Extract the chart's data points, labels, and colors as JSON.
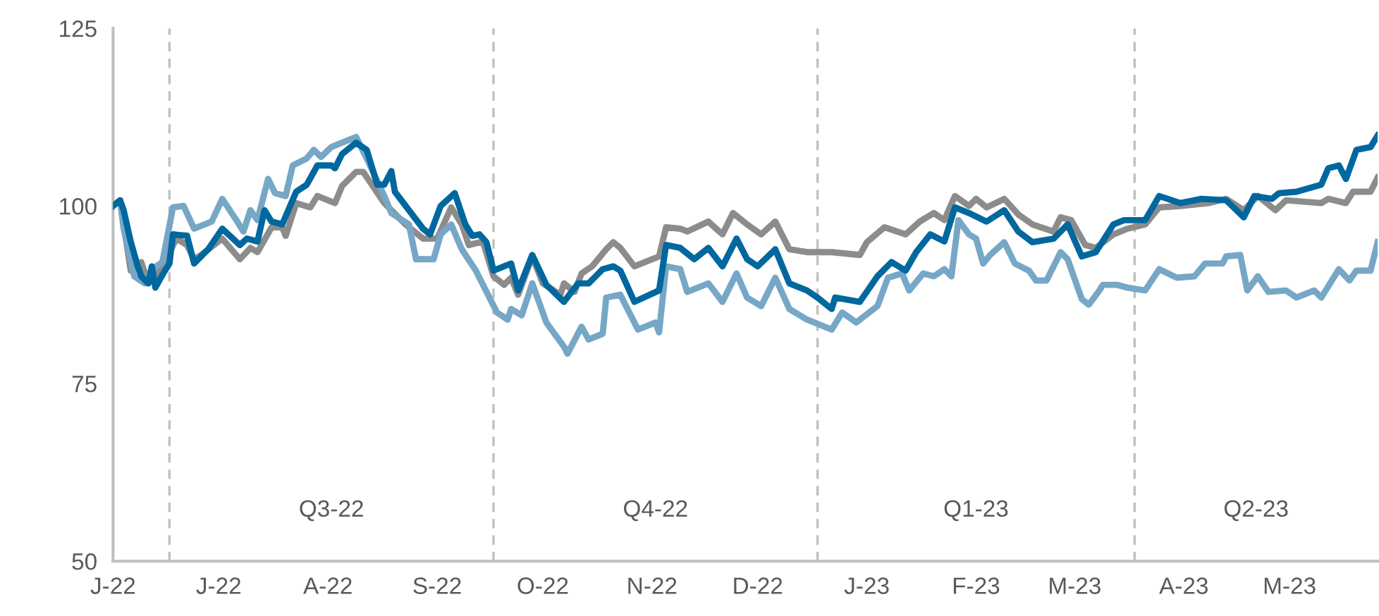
{
  "chart_data": {
    "type": "line",
    "xlim": [
      "2022-06-15",
      "2023-06-09"
    ],
    "ylim": [
      50,
      125
    ],
    "yticks": [
      50,
      75,
      100,
      125
    ],
    "xticks": [
      {
        "value": "2022-06-15",
        "label": "J-22"
      },
      {
        "value": "2022-07-15",
        "label": "J-22"
      },
      {
        "value": "2022-08-15",
        "label": "A-22"
      },
      {
        "value": "2022-09-15",
        "label": "S-22"
      },
      {
        "value": "2022-10-15",
        "label": "O-22"
      },
      {
        "value": "2022-11-15",
        "label": "N-22"
      },
      {
        "value": "2022-12-15",
        "label": "D-22"
      },
      {
        "value": "2023-01-15",
        "label": "J-23"
      },
      {
        "value": "2023-02-15",
        "label": "F-23"
      },
      {
        "value": "2023-03-15",
        "label": "M-23"
      },
      {
        "value": "2023-04-15",
        "label": "A-23"
      },
      {
        "value": "2023-05-15",
        "label": "M-23"
      }
    ],
    "grid": false,
    "marker": "none",
    "line_style": "solid",
    "ref_lines": [
      {
        "axis": "x",
        "value": "2022-07-01",
        "color": "#bfbfbf",
        "line_style": "dashed"
      },
      {
        "axis": "x",
        "value": "2022-10-01",
        "color": "#bfbfbf",
        "line_style": "dashed"
      },
      {
        "axis": "x",
        "value": "2023-01-01",
        "color": "#bfbfbf",
        "line_style": "dashed"
      },
      {
        "axis": "x",
        "value": "2023-04-01",
        "color": "#bfbfbf",
        "line_style": "dashed"
      }
    ],
    "annotations": [
      "Q3-22",
      "Q4-22",
      "Q1-23",
      "Q2-23"
    ],
    "series": [
      {
        "color": "#8c8c8c",
        "x": [
          "2022-06-15",
          "2022-06-17",
          "2022-06-18",
          "2022-06-20",
          "2022-06-23",
          "2022-06-25",
          "2022-06-29",
          "2022-07-03",
          "2022-07-06",
          "2022-07-08",
          "2022-07-10",
          "2022-07-16",
          "2022-07-21",
          "2022-07-24",
          "2022-07-26",
          "2022-07-30",
          "2022-08-02",
          "2022-08-03",
          "2022-08-06",
          "2022-08-10",
          "2022-08-12",
          "2022-08-17",
          "2022-08-19",
          "2022-08-23",
          "2022-08-25",
          "2022-08-31",
          "2022-09-06",
          "2022-09-11",
          "2022-09-15",
          "2022-09-19",
          "2022-09-22",
          "2022-09-24",
          "2022-09-28",
          "2022-10-01",
          "2022-10-04",
          "2022-10-06",
          "2022-10-08",
          "2022-10-12",
          "2022-10-15",
          "2022-10-20",
          "2022-10-21",
          "2022-10-24",
          "2022-10-26",
          "2022-10-29",
          "2022-11-02",
          "2022-11-04",
          "2022-11-06",
          "2022-11-10",
          "2022-11-17",
          "2022-11-19",
          "2022-11-23",
          "2022-11-25",
          "2022-12-01",
          "2022-12-05",
          "2022-12-08",
          "2022-12-12",
          "2022-12-16",
          "2022-12-20",
          "2022-12-24",
          "2022-12-29",
          "2023-01-05",
          "2023-01-13",
          "2023-01-15",
          "2023-01-20",
          "2023-01-26",
          "2023-01-30",
          "2023-02-03",
          "2023-02-06",
          "2023-02-09",
          "2023-02-13",
          "2023-02-15",
          "2023-02-18",
          "2023-02-23",
          "2023-02-27",
          "2023-03-03",
          "2023-03-09",
          "2023-03-11",
          "2023-03-14",
          "2023-03-18",
          "2023-03-21",
          "2023-03-26",
          "2023-03-30",
          "2023-04-04",
          "2023-04-08",
          "2023-04-14",
          "2023-04-22",
          "2023-04-27",
          "2023-05-02",
          "2023-05-06",
          "2023-05-11",
          "2023-05-14",
          "2023-05-24",
          "2023-05-26",
          "2023-05-31",
          "2023-06-02",
          "2023-06-07",
          "2023-06-09"
        ],
        "values": [
          100,
          100.8,
          97.4,
          90.9,
          92.1,
          89.1,
          91.5,
          95.4,
          94.5,
          92.5,
          93.1,
          95.4,
          92.5,
          94.1,
          93.5,
          97.0,
          97.0,
          95.8,
          100.4,
          99.8,
          101.4,
          100.4,
          102.8,
          104.8,
          104.8,
          100.4,
          97.4,
          95.4,
          95.4,
          99.8,
          97.4,
          94.5,
          95.0,
          90.1,
          88.9,
          89.9,
          87.5,
          92.9,
          89.1,
          87.5,
          89.1,
          87.9,
          90.5,
          91.5,
          93.9,
          94.9,
          94.1,
          91.5,
          92.9,
          97.0,
          96.8,
          96.4,
          97.8,
          96.0,
          99.0,
          97.4,
          96.0,
          97.8,
          93.9,
          93.5,
          93.5,
          93.1,
          94.9,
          97.0,
          96.0,
          97.8,
          99.0,
          98.0,
          101.4,
          100,
          101.0,
          99.8,
          101.0,
          98.8,
          97.4,
          96.4,
          98.4,
          98.0,
          94.5,
          94.1,
          96.0,
          96.8,
          97.4,
          99.8,
          100,
          100.4,
          101.0,
          99.4,
          101.4,
          99.4,
          100.8,
          100.4,
          101.0,
          100.4,
          102.0,
          102.0,
          104.0
        ]
      },
      {
        "color": "#76a7c6",
        "x": [
          "2022-06-15",
          "2022-06-17",
          "2022-06-18",
          "2022-06-21",
          "2022-06-24",
          "2022-06-26",
          "2022-06-29",
          "2022-07-02",
          "2022-07-05",
          "2022-07-08",
          "2022-07-13",
          "2022-07-16",
          "2022-07-20",
          "2022-07-22",
          "2022-07-24",
          "2022-07-26",
          "2022-07-29",
          "2022-07-31",
          "2022-08-03",
          "2022-08-05",
          "2022-08-09",
          "2022-08-11",
          "2022-08-13",
          "2022-08-16",
          "2022-08-19",
          "2022-08-23",
          "2022-08-26",
          "2022-08-31",
          "2022-09-02",
          "2022-09-07",
          "2022-09-09",
          "2022-09-14",
          "2022-09-16",
          "2022-09-19",
          "2022-09-22",
          "2022-09-26",
          "2022-09-28",
          "2022-10-02",
          "2022-10-05",
          "2022-10-06",
          "2022-10-09",
          "2022-10-12",
          "2022-10-16",
          "2022-10-21",
          "2022-10-22",
          "2022-10-26",
          "2022-10-28",
          "2022-11-01",
          "2022-11-02",
          "2022-11-06",
          "2022-11-11",
          "2022-11-16",
          "2022-11-17",
          "2022-11-19",
          "2022-11-23",
          "2022-11-25",
          "2022-12-01",
          "2022-12-05",
          "2022-12-09",
          "2022-12-12",
          "2022-12-16",
          "2022-12-20",
          "2022-12-24",
          "2022-12-29",
          "2023-01-05",
          "2023-01-08",
          "2023-01-12",
          "2023-01-18",
          "2023-01-21",
          "2023-01-25",
          "2023-01-27",
          "2023-01-31",
          "2023-02-03",
          "2023-02-06",
          "2023-02-08",
          "2023-02-10",
          "2023-02-13",
          "2023-02-15",
          "2023-02-17",
          "2023-02-19",
          "2023-02-23",
          "2023-02-26",
          "2023-03-02",
          "2023-03-04",
          "2023-03-07",
          "2023-03-11",
          "2023-03-13",
          "2023-03-17",
          "2023-03-19",
          "2023-03-22",
          "2023-03-23",
          "2023-03-27",
          "2023-03-30",
          "2023-04-04",
          "2023-04-08",
          "2023-04-13",
          "2023-04-18",
          "2023-04-21",
          "2023-04-26",
          "2023-04-27",
          "2023-05-01",
          "2023-05-03",
          "2023-05-06",
          "2023-05-09",
          "2023-05-14",
          "2023-05-17",
          "2023-05-22",
          "2023-05-24",
          "2023-05-29",
          "2023-06-01",
          "2023-06-03",
          "2023-06-07",
          "2023-06-09"
        ],
        "values": [
          100,
          100.8,
          96.8,
          90.1,
          89.1,
          91.1,
          92.1,
          99.8,
          100,
          96.8,
          97.8,
          101.0,
          98.0,
          96.4,
          99.4,
          98.0,
          103.8,
          101.8,
          101.4,
          105.7,
          106.7,
          107.9,
          106.9,
          108.3,
          108.9,
          109.7,
          106.7,
          101.4,
          99.0,
          97.4,
          92.5,
          92.5,
          96.0,
          97.4,
          93.9,
          90.9,
          88.9,
          85.0,
          84.0,
          85.5,
          84.6,
          89.1,
          83.6,
          80.2,
          79.2,
          83.0,
          81.2,
          82.0,
          87.1,
          87.5,
          82.6,
          83.6,
          82.2,
          91.5,
          91.1,
          87.9,
          89.1,
          86.5,
          90.5,
          87.1,
          85.9,
          89.9,
          85.5,
          84.0,
          82.6,
          85.0,
          83.6,
          85.9,
          89.9,
          90.5,
          88.1,
          90.5,
          90.1,
          91.1,
          90.1,
          98.0,
          96.0,
          95.4,
          91.9,
          93.1,
          94.9,
          91.9,
          90.9,
          89.5,
          89.5,
          93.5,
          92.5,
          86.9,
          86.1,
          88.1,
          88.9,
          88.9,
          88.5,
          88.1,
          91.1,
          89.9,
          90.1,
          91.9,
          91.9,
          92.9,
          93.1,
          88.1,
          90.1,
          87.9,
          88.1,
          87.1,
          88.1,
          87.1,
          91.1,
          89.5,
          90.9,
          90.9,
          94.9
        ]
      },
      {
        "color": "#00679f",
        "x": [
          "2022-06-15",
          "2022-06-17",
          "2022-06-18",
          "2022-06-20",
          "2022-06-22",
          "2022-06-23",
          "2022-06-25",
          "2022-06-26",
          "2022-06-27",
          "2022-06-29",
          "2022-07-01",
          "2022-07-02",
          "2022-07-06",
          "2022-07-08",
          "2022-07-12",
          "2022-07-16",
          "2022-07-21",
          "2022-07-23",
          "2022-07-26",
          "2022-07-28",
          "2022-07-30",
          "2022-08-02",
          "2022-08-06",
          "2022-08-09",
          "2022-08-12",
          "2022-08-16",
          "2022-08-17",
          "2022-08-19",
          "2022-08-23",
          "2022-08-26",
          "2022-08-29",
          "2022-08-31",
          "2022-09-02",
          "2022-09-03",
          "2022-09-07",
          "2022-09-11",
          "2022-09-13",
          "2022-09-16",
          "2022-09-20",
          "2022-09-23",
          "2022-09-25",
          "2022-09-27",
          "2022-09-29",
          "2022-10-01",
          "2022-10-06",
          "2022-10-08",
          "2022-10-12",
          "2022-10-16",
          "2022-10-21",
          "2022-10-25",
          "2022-10-28",
          "2022-11-01",
          "2022-11-04",
          "2022-11-06",
          "2022-11-10",
          "2022-11-17",
          "2022-11-19",
          "2022-11-23",
          "2022-11-27",
          "2022-12-01",
          "2022-12-05",
          "2022-12-09",
          "2022-12-12",
          "2022-12-15",
          "2022-12-20",
          "2022-12-24",
          "2022-12-29",
          "2023-01-01",
          "2023-01-05",
          "2023-01-06",
          "2023-01-13",
          "2023-01-18",
          "2023-01-22",
          "2023-01-26",
          "2023-01-29",
          "2023-02-02",
          "2023-02-06",
          "2023-02-09",
          "2023-02-13",
          "2023-02-18",
          "2023-02-23",
          "2023-02-27",
          "2023-03-03",
          "2023-03-09",
          "2023-03-13",
          "2023-03-17",
          "2023-03-21",
          "2023-03-26",
          "2023-03-29",
          "2023-04-04",
          "2023-04-08",
          "2023-04-14",
          "2023-04-20",
          "2023-04-27",
          "2023-05-02",
          "2023-05-05",
          "2023-05-10",
          "2023-05-12",
          "2023-05-17",
          "2023-05-24",
          "2023-05-26",
          "2023-05-29",
          "2023-05-31",
          "2023-06-03",
          "2023-06-07",
          "2023-06-09"
        ],
        "values": [
          100,
          100.8,
          99.4,
          95.0,
          91.5,
          90.1,
          89.1,
          91.5,
          88.5,
          90.3,
          91.9,
          96.0,
          95.8,
          91.9,
          93.9,
          96.8,
          94.5,
          95.4,
          95.0,
          99.4,
          97.8,
          97.4,
          102.0,
          103.0,
          105.7,
          105.7,
          105.3,
          107.3,
          108.9,
          107.9,
          103.0,
          103.0,
          104.9,
          102.0,
          99.4,
          96.8,
          96.0,
          100,
          101.8,
          97.4,
          95.8,
          96.0,
          94.9,
          90.9,
          91.9,
          88.1,
          93.1,
          88.9,
          86.5,
          89.1,
          89.1,
          91.1,
          91.5,
          90.9,
          86.5,
          88.1,
          94.5,
          94.1,
          92.5,
          94.1,
          91.5,
          95.4,
          92.5,
          91.5,
          93.9,
          89.1,
          88.1,
          87.1,
          85.5,
          87.1,
          86.5,
          90.1,
          92.1,
          90.9,
          93.5,
          96.0,
          95.0,
          99.8,
          99.0,
          97.8,
          99.4,
          96.4,
          94.9,
          95.4,
          97.4,
          92.9,
          93.5,
          97.4,
          98.0,
          98.0,
          101.4,
          100.4,
          101.0,
          100.8,
          98.4,
          101.4,
          101.0,
          101.8,
          102.0,
          103.0,
          105.3,
          105.7,
          103.8,
          107.9,
          108.3,
          109.9
        ]
      }
    ]
  }
}
